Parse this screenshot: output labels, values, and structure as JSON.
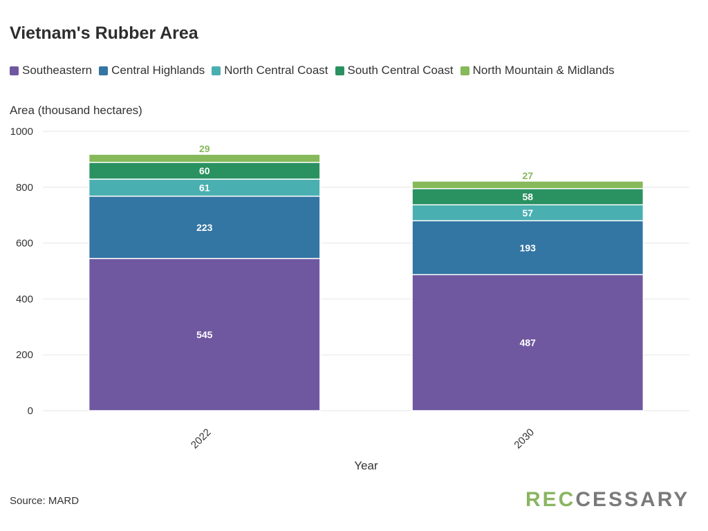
{
  "title": "Vietnam's Rubber Area",
  "source": "Source: MARD",
  "logo": {
    "part1": "REC",
    "part2": "CESSARY"
  },
  "legend_colors": [
    "#6f58a0",
    "#3375a3",
    "#4aafb0",
    "#2a9160",
    "#86b95a"
  ],
  "chart_data": {
    "type": "bar",
    "stacked": true,
    "categories": [
      "2022",
      "2030"
    ],
    "series": [
      {
        "name": "Southeastern",
        "values": [
          545,
          487
        ],
        "color": "#6f58a0"
      },
      {
        "name": "Central Highlands",
        "values": [
          223,
          193
        ],
        "color": "#3375a3"
      },
      {
        "name": "North Central Coast",
        "values": [
          61,
          57
        ],
        "color": "#4aafb0"
      },
      {
        "name": "South Central Coast",
        "values": [
          60,
          58
        ],
        "color": "#2a9160"
      },
      {
        "name": "North Mountain & Midlands",
        "values": [
          29,
          27
        ],
        "color": "#86b95a"
      }
    ],
    "xlabel": "Year",
    "ylabel": "Area (thousand hectares)",
    "ylim": [
      0,
      1000
    ],
    "yticks": [
      "0",
      "200",
      "400",
      "600",
      "800",
      "1000"
    ],
    "grid": true,
    "legend_position": "top-left"
  }
}
